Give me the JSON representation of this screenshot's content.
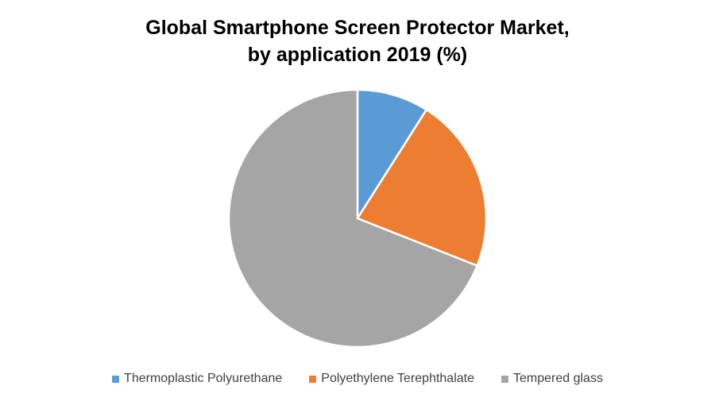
{
  "chart_data": {
    "type": "pie",
    "title_lines": [
      "Global Smartphone Screen Protector Market,",
      "by application 2019 (%)"
    ],
    "categories": [
      "Thermoplastic Polyurethane",
      "Polyethylene Terephthalate",
      "Tempered glass"
    ],
    "values": [
      9,
      22,
      69
    ],
    "colors": [
      "#5B9BD5",
      "#ED7D31",
      "#A5A5A5"
    ],
    "start_angle": "12 o'clock",
    "direction": "clockwise",
    "legend_position": "bottom"
  }
}
